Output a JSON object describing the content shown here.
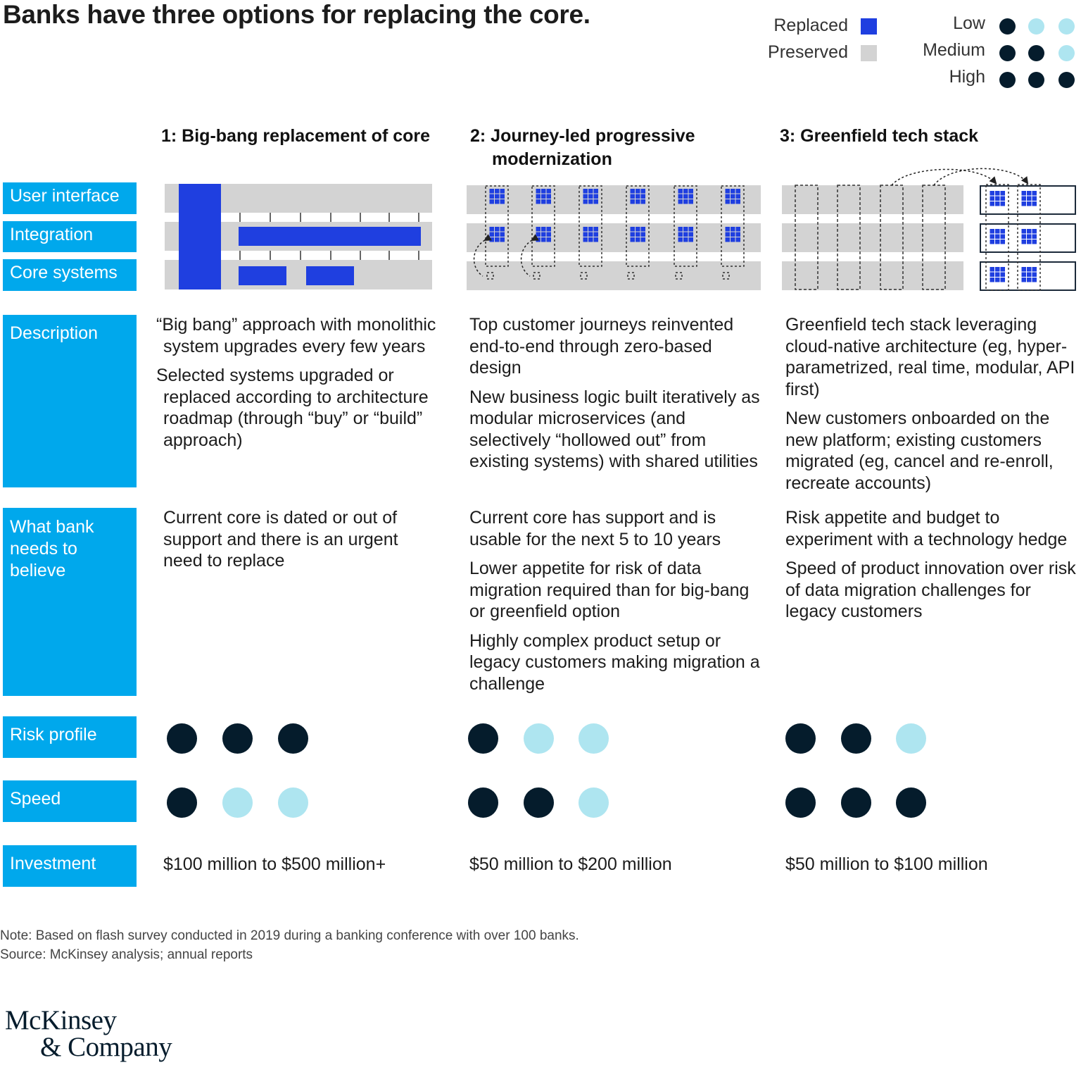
{
  "title": "Banks have three options for replacing the core.",
  "legend": {
    "replaced_label": "Replaced",
    "preserved_label": "Preserved",
    "replaced_color": "#1f3fe0",
    "preserved_color": "#d3d3d3",
    "levels": [
      {
        "label": "Low",
        "filled": 1
      },
      {
        "label": "Medium",
        "filled": 2
      },
      {
        "label": "High",
        "filled": 3
      }
    ],
    "dark_color": "#051c2c",
    "light_color": "#aee5f0"
  },
  "options": [
    {
      "heading": "1: Big-bang replacement of core",
      "description": [
        "“Big bang” approach with monolithic system upgrades every few years",
        "Selected systems upgraded or replaced according to architecture roadmap (through “buy” or “build” approach)"
      ],
      "believe": [
        "Current core is dated or out of support and there is an urgent need to replace"
      ],
      "risk": 3,
      "speed": 1,
      "investment": "$100 million to $500 million+"
    },
    {
      "heading": "2: Journey-led progressive modernization",
      "description": [
        "Top customer journeys reinvented end-to-end through zero-based design",
        "New business logic built iteratively as modular microservices (and selectively “hollowed out” from existing systems) with shared utilities"
      ],
      "believe": [
        "Current core has support and is usable for the next 5 to 10 years",
        "Lower appetite for risk of data migration required than for big-bang or greenfield option",
        "Highly complex product setup or legacy customers making migration a challenge"
      ],
      "risk": 1,
      "speed": 2,
      "investment": "$50 million to $200 million"
    },
    {
      "heading": "3: Greenfield tech stack",
      "description": [
        "Greenfield tech stack leveraging cloud-native architecture (eg, hyper-parametrized, real time, modular, API first)",
        "New customers onboarded on the new platform; existing customers migrated (eg, cancel and re-enroll, recreate accounts)"
      ],
      "believe": [
        "Risk appetite and budget to experiment with a technology hedge",
        "Speed of product innovation over risk of data migration challenges for legacy customers"
      ],
      "risk": 2,
      "speed": 3,
      "investment": "$50 million to $100 million"
    }
  ],
  "row_labels": {
    "ui": "User interface",
    "integration": "Integration",
    "core": "Core systems",
    "description": "Description",
    "believe": [
      "What bank",
      "needs to",
      "believe"
    ],
    "risk": "Risk profile",
    "speed": "Speed",
    "investment": "Investment"
  },
  "note": "Note: Based on flash survey conducted in 2019 during a banking conference with over 100 banks.",
  "source": "Source: McKinsey analysis; annual reports",
  "logo": [
    "McKinsey",
    "& Company"
  ]
}
